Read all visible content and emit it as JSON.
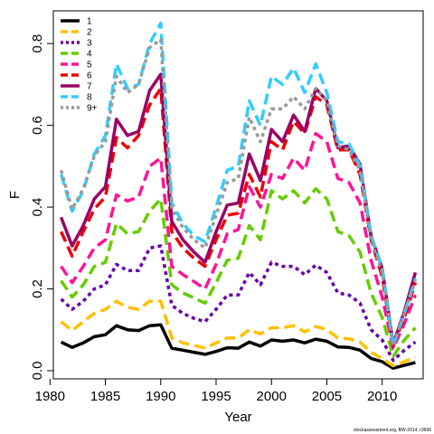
{
  "chart_data": {
    "type": "line",
    "xlabel": "Year",
    "ylabel": "F",
    "xlim": [
      1980.3,
      2013.7
    ],
    "ylim": [
      -0.02,
      0.88
    ],
    "xticks": [
      1980,
      1985,
      1990,
      1995,
      2000,
      2005,
      2010
    ],
    "yticks": [
      0.0,
      0.2,
      0.4,
      0.6,
      0.8
    ],
    "xtick_labels": [
      "1980",
      "1985",
      "1990",
      "1995",
      "2000",
      "2005",
      "2010"
    ],
    "ytick_labels": [
      "0.0",
      "0.2",
      "0.4",
      "0.6",
      "0.8"
    ],
    "legend_position": "top-left",
    "grid": false,
    "credit": "stockassessment.org, BW-2014, r3696",
    "x": [
      1981,
      1982,
      1983,
      1984,
      1985,
      1986,
      1987,
      1988,
      1989,
      1990,
      1991,
      1992,
      1993,
      1994,
      1995,
      1996,
      1997,
      1998,
      1999,
      2000,
      2001,
      2002,
      2003,
      2004,
      2005,
      2006,
      2007,
      2008,
      2009,
      2010,
      2011,
      2012,
      2013
    ],
    "series": [
      {
        "name": "1",
        "color": "#000000",
        "dash": "solid",
        "values": [
          0.07,
          0.057,
          0.068,
          0.083,
          0.088,
          0.11,
          0.1,
          0.098,
          0.11,
          0.112,
          0.055,
          0.05,
          0.045,
          0.04,
          0.047,
          0.056,
          0.055,
          0.07,
          0.06,
          0.075,
          0.072,
          0.075,
          0.068,
          0.077,
          0.072,
          0.058,
          0.057,
          0.05,
          0.03,
          0.022,
          0.006,
          0.013,
          0.02
        ]
      },
      {
        "name": "2",
        "color": "#FFC000",
        "dash": "dashed",
        "values": [
          0.12,
          0.098,
          0.12,
          0.14,
          0.15,
          0.17,
          0.155,
          0.15,
          0.17,
          0.17,
          0.08,
          0.068,
          0.062,
          0.055,
          0.068,
          0.08,
          0.08,
          0.1,
          0.09,
          0.105,
          0.105,
          0.11,
          0.095,
          0.108,
          0.1,
          0.08,
          0.078,
          0.07,
          0.045,
          0.03,
          0.012,
          0.022,
          0.033
        ]
      },
      {
        "name": "3",
        "color": "#6600AA",
        "dash": "dotted",
        "values": [
          0.175,
          0.15,
          0.17,
          0.2,
          0.21,
          0.26,
          0.245,
          0.245,
          0.3,
          0.305,
          0.16,
          0.14,
          0.128,
          0.12,
          0.15,
          0.185,
          0.185,
          0.24,
          0.21,
          0.265,
          0.255,
          0.255,
          0.235,
          0.258,
          0.24,
          0.19,
          0.185,
          0.165,
          0.1,
          0.075,
          0.025,
          0.05,
          0.07
        ]
      },
      {
        "name": "4",
        "color": "#66CC00",
        "dash": "dashed",
        "values": [
          0.22,
          0.18,
          0.21,
          0.255,
          0.265,
          0.36,
          0.335,
          0.34,
          0.39,
          0.42,
          0.21,
          0.19,
          0.178,
          0.165,
          0.215,
          0.27,
          0.275,
          0.355,
          0.32,
          0.44,
          0.42,
          0.44,
          0.41,
          0.445,
          0.42,
          0.34,
          0.33,
          0.29,
          0.19,
          0.13,
          0.035,
          0.075,
          0.105
        ]
      },
      {
        "name": "5",
        "color": "#FF1493",
        "dash": "dashed",
        "values": [
          0.255,
          0.215,
          0.255,
          0.3,
          0.32,
          0.43,
          0.415,
          0.425,
          0.5,
          0.52,
          0.255,
          0.235,
          0.218,
          0.2,
          0.26,
          0.335,
          0.345,
          0.45,
          0.4,
          0.48,
          0.47,
          0.52,
          0.49,
          0.58,
          0.56,
          0.47,
          0.46,
          0.41,
          0.27,
          0.18,
          0.055,
          0.115,
          0.185
        ]
      },
      {
        "name": "6",
        "color": "#EE0000",
        "dash": "dashed",
        "values": [
          0.34,
          0.28,
          0.34,
          0.395,
          0.425,
          0.57,
          0.545,
          0.575,
          0.65,
          0.69,
          0.34,
          0.3,
          0.275,
          0.255,
          0.32,
          0.38,
          0.385,
          0.48,
          0.425,
          0.56,
          0.54,
          0.61,
          0.58,
          0.67,
          0.65,
          0.54,
          0.54,
          0.48,
          0.32,
          0.23,
          0.06,
          0.13,
          0.215
        ]
      },
      {
        "name": "7",
        "color": "#990066",
        "dash": "solid",
        "values": [
          0.375,
          0.305,
          0.355,
          0.42,
          0.45,
          0.615,
          0.575,
          0.585,
          0.685,
          0.725,
          0.365,
          0.32,
          0.29,
          0.265,
          0.34,
          0.405,
          0.41,
          0.53,
          0.465,
          0.59,
          0.56,
          0.625,
          0.585,
          0.69,
          0.66,
          0.545,
          0.55,
          0.505,
          0.33,
          0.25,
          0.065,
          0.145,
          0.24
        ]
      },
      {
        "name": "8",
        "color": "#33CCFF",
        "dash": "dashed",
        "values": [
          0.48,
          0.39,
          0.44,
          0.53,
          0.575,
          0.75,
          0.69,
          0.7,
          0.8,
          0.85,
          0.41,
          0.36,
          0.33,
          0.315,
          0.4,
          0.49,
          0.5,
          0.66,
          0.6,
          0.72,
          0.7,
          0.74,
          0.68,
          0.75,
          0.68,
          0.56,
          0.555,
          0.5,
          0.33,
          0.25,
          0.06,
          0.14,
          0.225
        ]
      },
      {
        "name": "9+",
        "color": "#999999",
        "dash": "dotted",
        "values": [
          0.49,
          0.395,
          0.445,
          0.525,
          0.56,
          0.72,
          0.68,
          0.7,
          0.79,
          0.81,
          0.395,
          0.35,
          0.32,
          0.3,
          0.38,
          0.46,
          0.47,
          0.62,
          0.56,
          0.64,
          0.64,
          0.67,
          0.64,
          0.69,
          0.66,
          0.55,
          0.54,
          0.49,
          0.32,
          0.24,
          0.06,
          0.14,
          0.22
        ]
      }
    ]
  }
}
